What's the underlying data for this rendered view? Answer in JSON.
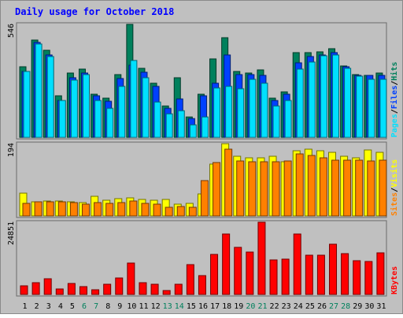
{
  "chart_data": {
    "type": "bar",
    "title": "Daily usage for October 2018",
    "categories": [
      "1",
      "2",
      "3",
      "4",
      "5",
      "6",
      "7",
      "8",
      "9",
      "10",
      "11",
      "12",
      "13",
      "14",
      "15",
      "16",
      "17",
      "18",
      "19",
      "20",
      "21",
      "22",
      "23",
      "24",
      "25",
      "26",
      "27",
      "28",
      "29",
      "30",
      "31"
    ],
    "weekend_days": [
      "6",
      "7",
      "13",
      "14",
      "20",
      "21",
      "27",
      "28"
    ],
    "panels": [
      {
        "id": "hits_files_pages",
        "max_label": "546",
        "ymax": 546,
        "legend": [
          "Pages",
          "/",
          "Files",
          "/",
          "Hits"
        ],
        "series": [
          {
            "name": "Hits",
            "color": "#00805c",
            "values": [
              340,
              470,
              420,
              200,
              310,
              330,
              210,
              190,
              305,
              546,
              335,
              260,
              150,
              290,
              100,
              210,
              380,
              480,
              320,
              310,
              325,
              190,
              220,
              410,
              410,
              415,
              430,
              345,
              305,
              300,
              310
            ]
          },
          {
            "name": "Files",
            "color": "#0040ff",
            "values": [
              320,
              460,
              400,
              180,
              290,
              310,
              200,
              175,
              285,
              350,
              315,
              245,
              140,
              185,
              90,
              200,
              260,
              400,
              305,
              305,
              300,
              180,
              210,
              360,
              390,
              400,
              410,
              340,
              300,
              300,
              300
            ]
          },
          {
            "name": "Pages",
            "color": "#00e0ff",
            "values": [
              320,
              450,
              390,
              180,
              275,
              305,
              180,
              140,
              245,
              370,
              290,
              170,
              115,
              130,
              60,
              100,
              240,
              245,
              235,
              280,
              260,
              150,
              180,
              330,
              365,
              395,
              400,
              335,
              295,
              280,
              280
            ]
          }
        ]
      },
      {
        "id": "sites_visits",
        "max_label": "194",
        "ymax": 194,
        "legend": [
          "Sites",
          "/",
          "Visits"
        ],
        "series": [
          {
            "name": "Visits",
            "color": "#ffff00",
            "values": [
              62,
              38,
              40,
              40,
              38,
              36,
              52,
              43,
              46,
              48,
              44,
              42,
              45,
              32,
              34,
              60,
              140,
              194,
              160,
              155,
              155,
              160,
              145,
              176,
              180,
              176,
              170,
              160,
              155,
              178,
              170
            ]
          },
          {
            "name": "Sites",
            "color": "#ff8000",
            "values": [
              33,
              38,
              39,
              39,
              36,
              31,
              36,
              34,
              36,
              40,
              34,
              32,
              24,
              26,
              24,
              94,
              144,
              180,
              148,
              146,
              146,
              146,
              148,
              167,
              163,
              155,
              150,
              150,
              149,
              148,
              150
            ]
          }
        ]
      },
      {
        "id": "kbytes",
        "max_label": "24851",
        "ymax": 24851,
        "legend": [
          "KBytes"
        ],
        "series": [
          {
            "name": "KBytes",
            "color": "#ff0000",
            "values": [
              3000,
              4000,
              5300,
              2000,
              3900,
              2700,
              1500,
              3600,
              5800,
              10800,
              4100,
              3400,
              1400,
              3400,
              10300,
              6500,
              13700,
              20800,
              16200,
              14500,
              24851,
              12000,
              12100,
              20700,
              13600,
              13400,
              17300,
              14000,
              11700,
              11300,
              14200
            ]
          }
        ]
      }
    ]
  }
}
